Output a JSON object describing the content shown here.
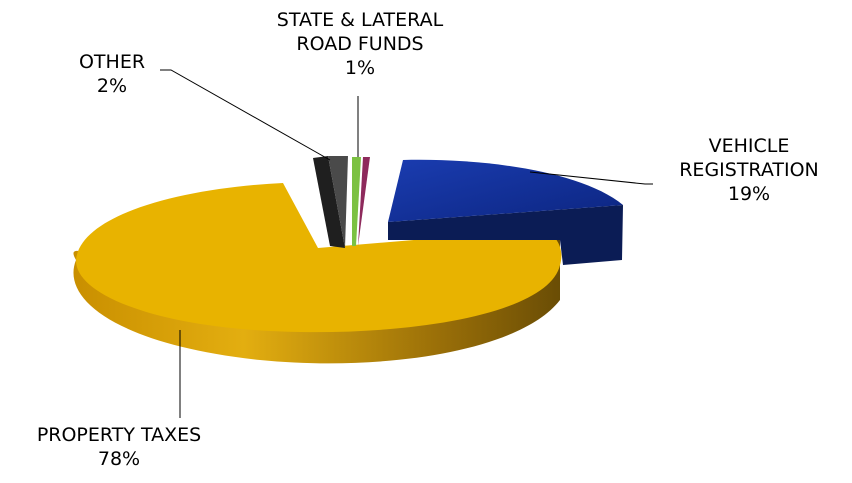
{
  "chart_data": {
    "type": "pie",
    "title": "",
    "slices": [
      {
        "label": "PROPERTY TAXES",
        "value": 78,
        "value_label": "78%",
        "color": "#E7B100"
      },
      {
        "label": "OTHER",
        "value": 2,
        "value_label": "2%",
        "color": "#3A3A3A"
      },
      {
        "label": "STATE & LATERAL ROAD FUNDS",
        "label_lines": [
          "STATE & LATERAL",
          "ROAD FUNDS"
        ],
        "value": 1,
        "value_label": "1%",
        "color": "#7CC142",
        "secondary_color": "#8E2A5C"
      },
      {
        "label": "VEHICLE REGISTRATION",
        "label_lines": [
          "VEHICLE",
          "REGISTRATION"
        ],
        "value": 19,
        "value_label": "19%",
        "color": "#12309A"
      }
    ],
    "legend": "none",
    "style": "3d exploded"
  }
}
